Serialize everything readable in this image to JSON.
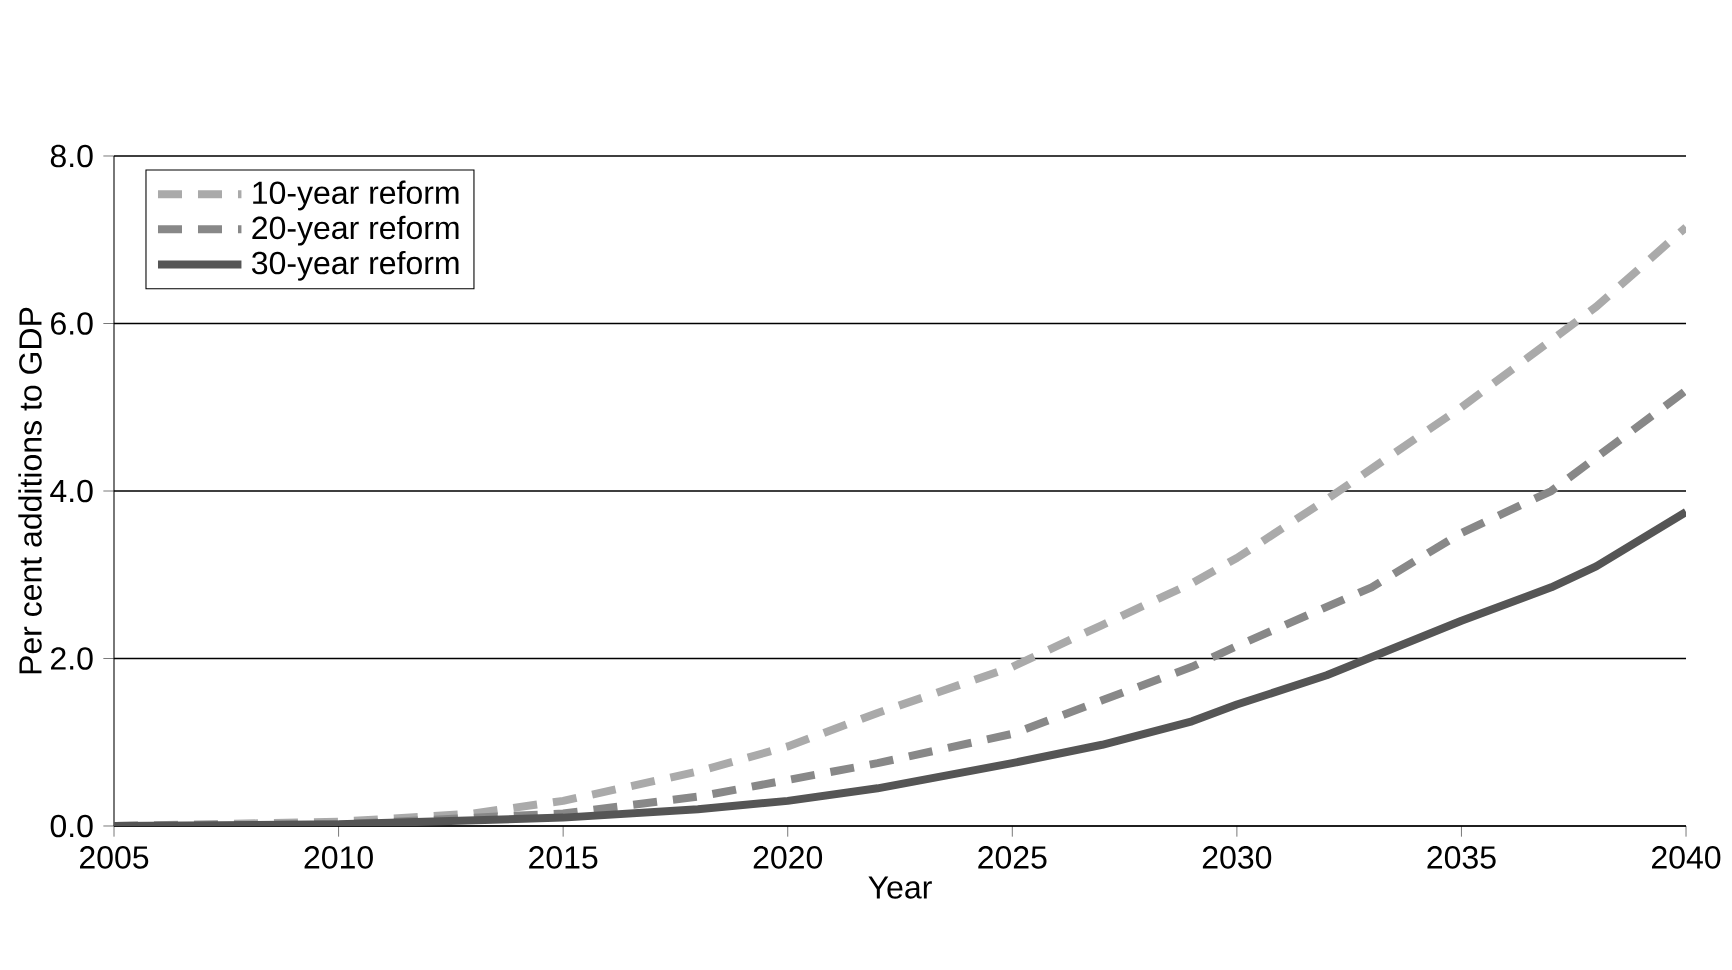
{
  "chart_data": {
    "type": "line",
    "xlabel": "Year",
    "ylabel": "Per cent additions to GDP",
    "xlim": [
      2005,
      2040
    ],
    "xticks": [
      2005,
      2010,
      2015,
      2020,
      2025,
      2030,
      2035,
      2040
    ],
    "ylim": [
      0,
      8
    ],
    "yticks": [
      {
        "value": 0,
        "label": "0.0"
      },
      {
        "value": 2,
        "label": "2.0"
      },
      {
        "value": 4,
        "label": "4.0"
      },
      {
        "value": 6,
        "label": "6.0"
      },
      {
        "value": 8,
        "label": "8.0"
      }
    ],
    "grid": "y",
    "legend": "top left",
    "marker": "none",
    "series": [
      {
        "name": "10-year reform",
        "color": "#aaaaaa",
        "line_style": "dashed",
        "x": [
          2005,
          2010,
          2013,
          2015,
          2018,
          2020,
          2022,
          2025,
          2027,
          2029,
          2030,
          2032,
          2035,
          2037,
          2038,
          2040
        ],
        "values": [
          0,
          0.05,
          0.15,
          0.3,
          0.65,
          0.95,
          1.35,
          1.9,
          2.4,
          2.9,
          3.2,
          3.9,
          5.0,
          5.8,
          6.2,
          7.15
        ]
      },
      {
        "name": "20-year reform",
        "color": "#888888",
        "line_style": "dashed",
        "x": [
          2005,
          2010,
          2015,
          2018,
          2020,
          2022,
          2025,
          2027,
          2029,
          2030,
          2033,
          2035,
          2037,
          2040
        ],
        "values": [
          0,
          0.02,
          0.15,
          0.35,
          0.55,
          0.75,
          1.1,
          1.5,
          1.9,
          2.15,
          2.85,
          3.5,
          4.0,
          5.2
        ]
      },
      {
        "name": "30-year reform",
        "color": "#555555",
        "line_style": "solid",
        "x": [
          2005,
          2010,
          2015,
          2018,
          2020,
          2022,
          2025,
          2027,
          2029,
          2030,
          2032,
          2035,
          2037,
          2038,
          2040
        ],
        "values": [
          0,
          0.02,
          0.1,
          0.2,
          0.3,
          0.45,
          0.75,
          0.97,
          1.25,
          1.45,
          1.8,
          2.45,
          2.85,
          3.1,
          3.75
        ]
      }
    ]
  }
}
